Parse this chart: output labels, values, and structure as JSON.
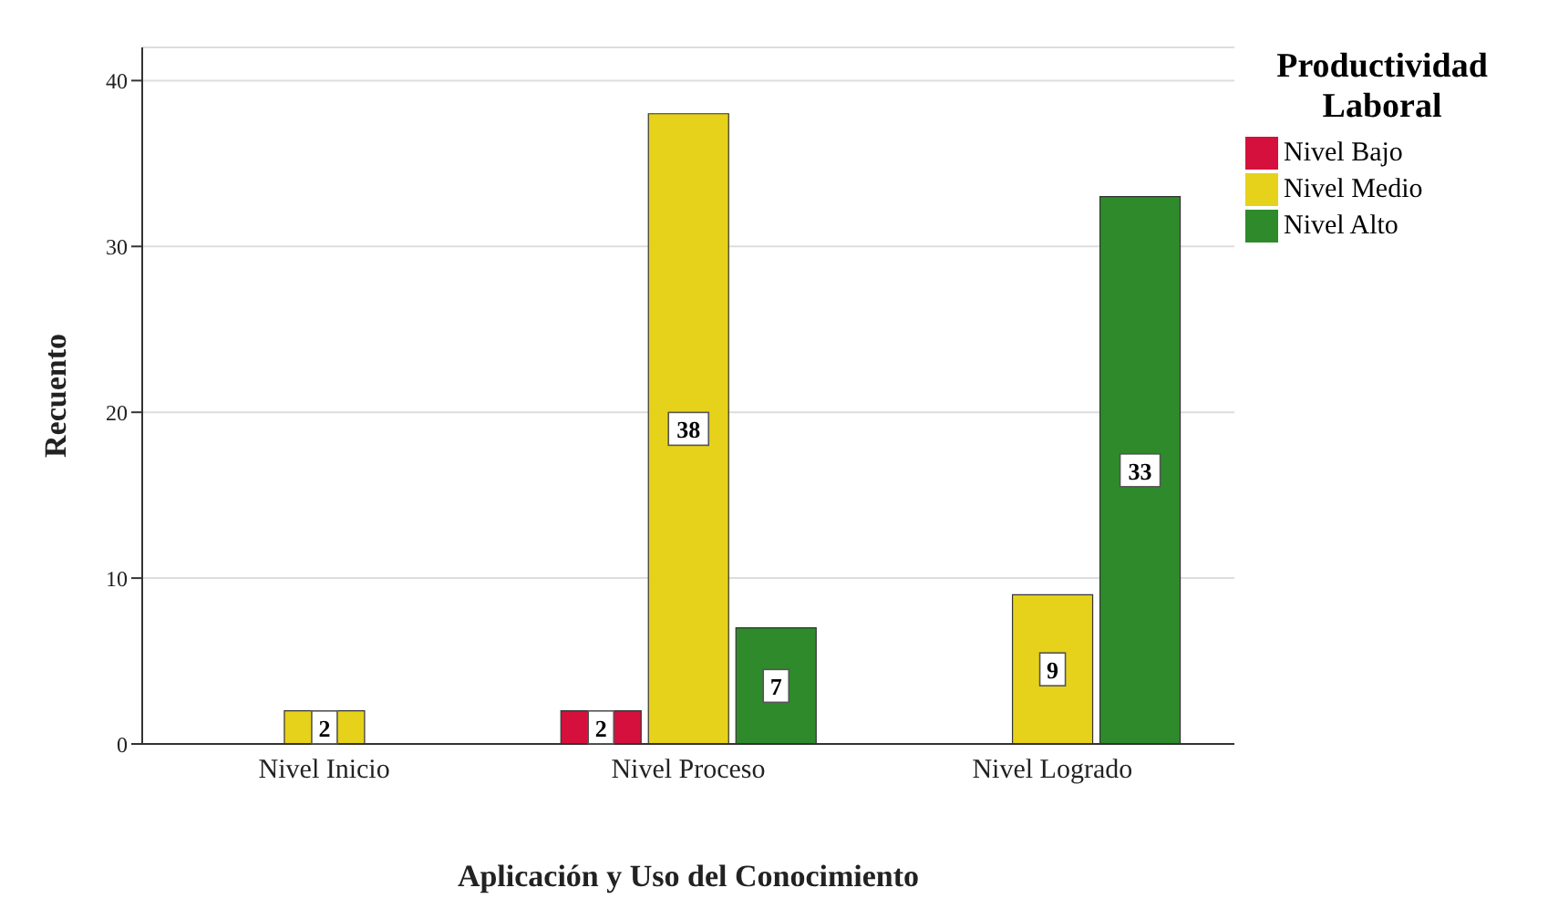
{
  "chart_data": {
    "type": "bar",
    "xlabel": "Aplicación y Uso del Conocimiento",
    "ylabel": "Recuento",
    "legend_title": "Productividad Laboral",
    "categories": [
      "Nivel Inicio",
      "Nivel Proceso",
      "Nivel Logrado"
    ],
    "series": [
      {
        "name": "Nivel Bajo",
        "color": "#d5103c",
        "values": [
          null,
          2,
          null
        ]
      },
      {
        "name": "Nivel Medio",
        "color": "#e6d21a",
        "values": [
          2,
          38,
          9
        ]
      },
      {
        "name": "Nivel Alto",
        "color": "#2f8a2c",
        "values": [
          null,
          7,
          33
        ]
      }
    ],
    "ylim": [
      0,
      42
    ],
    "yticks": [
      0,
      10,
      20,
      30,
      40
    ],
    "grid": "y",
    "legend": "top right",
    "data_labels": true
  }
}
